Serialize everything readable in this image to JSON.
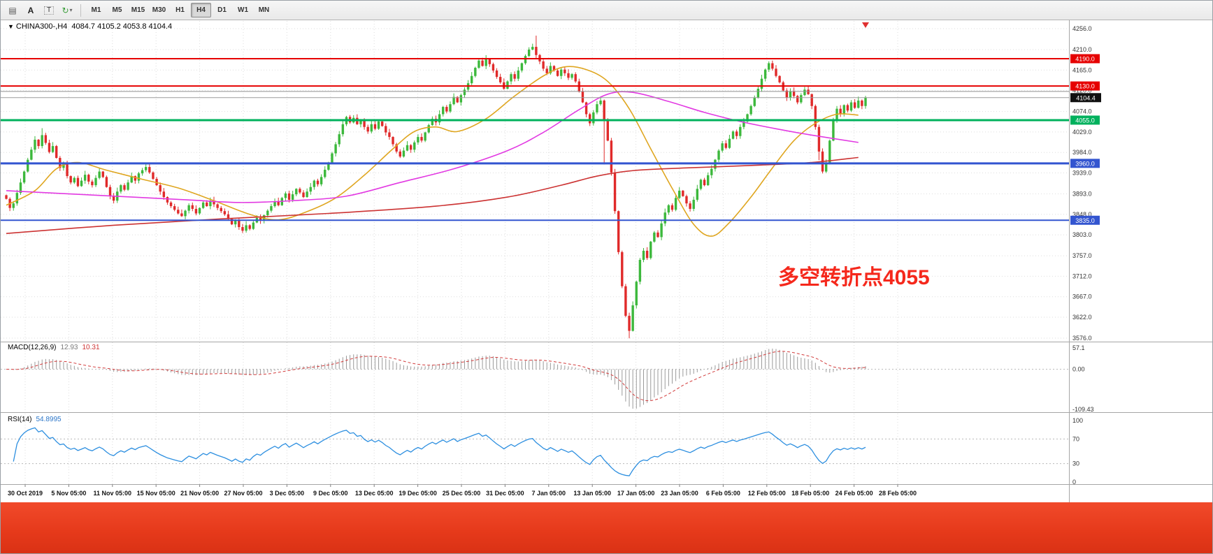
{
  "toolbar": {
    "icons": [
      {
        "name": "market-depth-icon",
        "glyph": "▤"
      },
      {
        "name": "font-icon",
        "glyph": "A"
      },
      {
        "name": "text-label-icon",
        "glyph": "T"
      },
      {
        "name": "refresh-cycle-icon",
        "glyph": "↻"
      },
      {
        "name": "dropdown-caret-icon",
        "glyph": "▾"
      }
    ],
    "timeframes": [
      {
        "label": "M1",
        "active": false
      },
      {
        "label": "M5",
        "active": false
      },
      {
        "label": "M15",
        "active": false
      },
      {
        "label": "M30",
        "active": false
      },
      {
        "label": "H1",
        "active": false
      },
      {
        "label": "H4",
        "active": true
      },
      {
        "label": "D1",
        "active": false
      },
      {
        "label": "W1",
        "active": false
      },
      {
        "label": "MN",
        "active": false
      }
    ]
  },
  "chart": {
    "symbol_marker": "▼",
    "title_symbol": "CHINA300-,H4",
    "title_ohlc": "4084.7 4105.2 4053.8 4104.4",
    "annotation_text": "多空转折点4055",
    "annotation_color": "#f5281c",
    "current_price_label": "4104.4",
    "price_axis_ticks": [
      "4256.0",
      "4210.0",
      "4165.0",
      "4120.0",
      "4074.0",
      "4029.0",
      "3984.0",
      "3939.0",
      "3893.0",
      "3848.0",
      "3803.0",
      "3757.0",
      "3712.0",
      "3667.0",
      "3622.0",
      "3576.0"
    ]
  },
  "indicators": {
    "macd": {
      "label": "MACD(12,26,9)",
      "value_main": "12.93",
      "value_signal": "10.31",
      "axis": [
        "57.1",
        "0.00",
        "-109.43"
      ]
    },
    "rsi": {
      "label": "RSI(14)",
      "value": "54.8995",
      "axis": [
        "100",
        "70",
        "30",
        "0"
      ]
    }
  },
  "time_axis": [
    "30 Oct 2019",
    "5 Nov 05:00",
    "11 Nov 05:00",
    "15 Nov 05:00",
    "21 Nov 05:00",
    "27 Nov 05:00",
    "3 Dec 05:00",
    "9 Dec 05:00",
    "13 Dec 05:00",
    "19 Dec 05:00",
    "25 Dec 05:00",
    "31 Dec 05:00",
    "7 Jan 05:00",
    "13 Jan 05:00",
    "17 Jan 05:00",
    "23 Jan 05:00",
    "6 Feb 05:00",
    "12 Feb 05:00",
    "18 Feb 05:00",
    "24 Feb 05:00",
    "28 Feb 05:00"
  ],
  "chart_data": {
    "type": "candlestick",
    "symbol": "CHINA300-",
    "timeframe": "H4",
    "y_range": [
      3576,
      4256
    ],
    "current_price": 4104.4,
    "open_first": 3890,
    "closes": [
      3882,
      3862,
      3872,
      3895,
      3918,
      3942,
      3968,
      3990,
      4012,
      3998,
      4022,
      4005,
      3985,
      3998,
      3972,
      3950,
      3958,
      3932,
      3918,
      3928,
      3910,
      3922,
      3935,
      3920,
      3912,
      3928,
      3942,
      3930,
      3908,
      3888,
      3878,
      3898,
      3912,
      3902,
      3918,
      3932,
      3922,
      3938,
      3945,
      3952,
      3940,
      3926,
      3912,
      3898,
      3886,
      3874,
      3866,
      3858,
      3850,
      3844,
      3856,
      3868,
      3860,
      3850,
      3862,
      3874,
      3866,
      3878,
      3870,
      3862,
      3855,
      3848,
      3838,
      3826,
      3834,
      3820,
      3812,
      3824,
      3816,
      3830,
      3840,
      3834,
      3846,
      3856,
      3866,
      3876,
      3868,
      3884,
      3894,
      3880,
      3892,
      3904,
      3896,
      3886,
      3898,
      3908,
      3922,
      3914,
      3930,
      3946,
      3962,
      3982,
      4002,
      4024,
      4046,
      4062,
      4050,
      4060,
      4046,
      4056,
      4040,
      4030,
      4046,
      4036,
      4052,
      4042,
      4028,
      4018,
      4002,
      3986,
      3975,
      3988,
      4000,
      3990,
      4006,
      4018,
      4010,
      4028,
      4044,
      4058,
      4050,
      4068,
      4084,
      4074,
      4090,
      4106,
      4094,
      4110,
      4122,
      4136,
      4152,
      4170,
      4186,
      4174,
      4190,
      4178,
      4164,
      4150,
      4138,
      4124,
      4140,
      4156,
      4146,
      4164,
      4180,
      4196,
      4210,
      4216,
      4198,
      4184,
      4168,
      4158,
      4174,
      4164,
      4152,
      4166,
      4158,
      4148,
      4156,
      4140,
      4118,
      4094,
      4068,
      4048,
      4072,
      4090,
      4098,
      4055,
      4010,
      3940,
      3855,
      3765,
      3690,
      3625,
      3592,
      3648,
      3700,
      3748,
      3768,
      3752,
      3788,
      3808,
      3798,
      3828,
      3852,
      3868,
      3858,
      3884,
      3900,
      3888,
      3872,
      3860,
      3880,
      3904,
      3924,
      3912,
      3934,
      3948,
      3968,
      3988,
      4004,
      3994,
      4014,
      4030,
      4020,
      4040,
      4052,
      4068,
      4086,
      4104,
      4124,
      4146,
      4166,
      4180,
      4168,
      4152,
      4138,
      4120,
      4104,
      4118,
      4108,
      4094,
      4110,
      4122,
      4112,
      4086,
      4040,
      3986,
      3942,
      3960,
      4010,
      4056,
      4080,
      4068,
      4088,
      4076,
      4094,
      4082,
      4098,
      4086,
      4104
    ],
    "wick_overrides": {
      "10": {
        "h": 12
      },
      "148": {
        "h": 16
      },
      "167": {
        "l": 95
      },
      "174": {
        "l": 14
      },
      "227": {
        "l": 14
      }
    },
    "colors": {
      "up": "#3cb83c",
      "down": "#e02a2a"
    },
    "moving_averages": [
      {
        "name": "ma-fast-orange",
        "color": "#dfa620",
        "width": 1.6,
        "anchors": [
          [
            0,
            3868
          ],
          [
            8,
            3900
          ],
          [
            14,
            3948
          ],
          [
            20,
            3962
          ],
          [
            28,
            3945
          ],
          [
            38,
            3925
          ],
          [
            48,
            3906
          ],
          [
            58,
            3878
          ],
          [
            68,
            3848
          ],
          [
            76,
            3836
          ],
          [
            84,
            3854
          ],
          [
            92,
            3884
          ],
          [
            100,
            3934
          ],
          [
            108,
            3992
          ],
          [
            114,
            4030
          ],
          [
            120,
            4040
          ],
          [
            126,
            4030
          ],
          [
            134,
            4058
          ],
          [
            142,
            4108
          ],
          [
            150,
            4152
          ],
          [
            156,
            4172
          ],
          [
            162,
            4166
          ],
          [
            168,
            4140
          ],
          [
            174,
            4080
          ],
          [
            180,
            3992
          ],
          [
            186,
            3905
          ],
          [
            192,
            3826
          ],
          [
            197,
            3800
          ],
          [
            202,
            3830
          ],
          [
            208,
            3886
          ],
          [
            214,
            3950
          ],
          [
            220,
            4010
          ],
          [
            226,
            4048
          ],
          [
            232,
            4068
          ],
          [
            238,
            4066
          ]
        ]
      },
      {
        "name": "ma-medium-magenta",
        "color": "#e23ae2",
        "width": 1.6,
        "anchors": [
          [
            0,
            3900
          ],
          [
            25,
            3890
          ],
          [
            50,
            3880
          ],
          [
            65,
            3874
          ],
          [
            80,
            3878
          ],
          [
            95,
            3888
          ],
          [
            110,
            3918
          ],
          [
            125,
            3948
          ],
          [
            140,
            3988
          ],
          [
            150,
            4028
          ],
          [
            160,
            4078
          ],
          [
            168,
            4112
          ],
          [
            175,
            4116
          ],
          [
            185,
            4096
          ],
          [
            195,
            4072
          ],
          [
            205,
            4052
          ],
          [
            215,
            4036
          ],
          [
            225,
            4022
          ],
          [
            238,
            4006
          ]
        ]
      },
      {
        "name": "ma-slow-red",
        "color": "#cc3333",
        "width": 1.6,
        "anchors": [
          [
            0,
            3806
          ],
          [
            30,
            3824
          ],
          [
            60,
            3838
          ],
          [
            90,
            3850
          ],
          [
            120,
            3866
          ],
          [
            140,
            3886
          ],
          [
            155,
            3912
          ],
          [
            165,
            3932
          ],
          [
            175,
            3944
          ],
          [
            190,
            3950
          ],
          [
            210,
            3956
          ],
          [
            225,
            3962
          ],
          [
            238,
            3973
          ]
        ]
      }
    ],
    "levels": [
      {
        "price": 4190,
        "color": "#e60000",
        "width": 2,
        "label": "4190.0"
      },
      {
        "price": 4130,
        "color": "#e60000",
        "width": 2,
        "label": "4130.0"
      },
      {
        "price": 4118,
        "color": "#8f8f8f",
        "width": 1,
        "label": ""
      },
      {
        "price": 4055,
        "color": "#00b15d",
        "width": 3,
        "label": "4055.0"
      },
      {
        "price": 3960,
        "color": "#3355d0",
        "width": 3,
        "label": "3960.0"
      },
      {
        "price": 3835,
        "color": "#3355d0",
        "width": 2,
        "label": "3835.0"
      }
    ],
    "macd_params": {
      "fast": 12,
      "slow": 26,
      "signal": 9
    },
    "rsi_period": 14
  }
}
